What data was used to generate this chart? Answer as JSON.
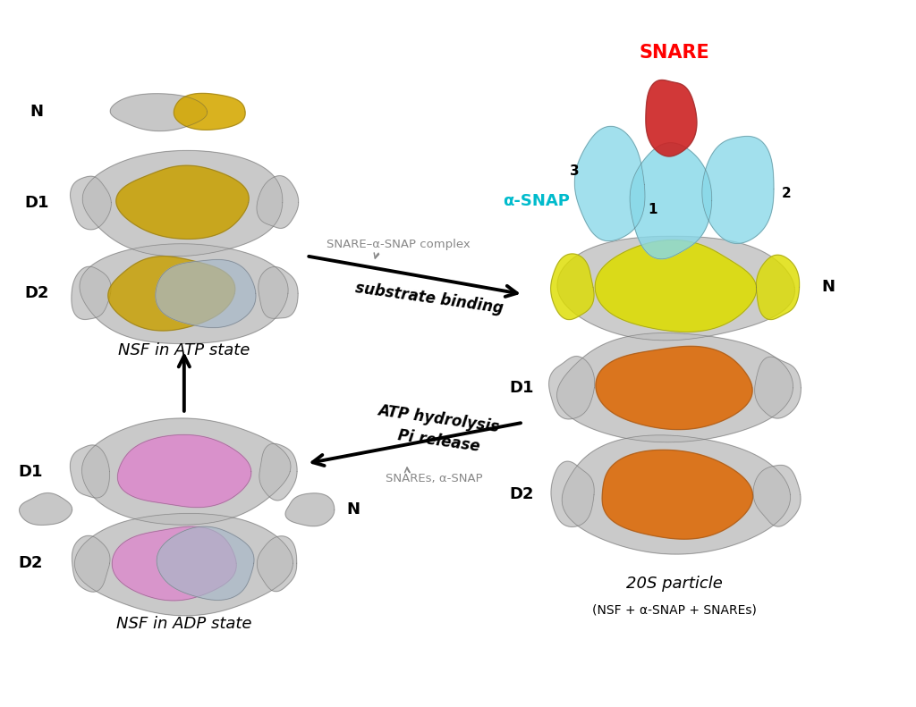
{
  "background_color": "#ffffff",
  "fig_width": 10.24,
  "fig_height": 7.91,
  "nsf_atp_label": "NSF in ATP state",
  "nsf_adp_label": "NSF in ADP state",
  "particle_20s_label": "20S particle",
  "particle_20s_sublabel": "(NSF + α-SNAP + SNAREs)",
  "snare_label": "SNARE",
  "snare_color": "#ff0000",
  "alpha_snap_label": "α-SNAP",
  "alpha_snap_color": "#00bbcc",
  "label_N_atp": "N",
  "label_D1_atp": "D1",
  "label_D2_atp": "D2",
  "label_N_adp": "N",
  "label_D1_adp": "D1",
  "label_D2_adp": "D2",
  "label_N_20s": "N",
  "label_D1_20s": "D1",
  "label_D2_20s": "D2",
  "label_1": "1",
  "label_2": "2",
  "label_3": "3",
  "arrow1_label": "substrate binding",
  "arrow1_sublabel": "SNARE–α-SNAP complex",
  "arrow2_label1": "ATP hydrolysis",
  "arrow2_label2": "Pi release",
  "arrow2_sublabel": "SNAREs, α-SNAP",
  "label_fontsize": 13,
  "title_fontsize": 13,
  "color_gray": "#c0c0c0",
  "color_gray_dark": "#a0a0a0",
  "color_gold": "#c8a000",
  "color_gold2": "#d4a800",
  "color_blue_gray": "#a8b8c8",
  "color_pink": "#dd88cc",
  "color_yellow": "#dddd00",
  "color_orange": "#dd6600",
  "color_cyan": "#88d8e8",
  "color_red": "#cc2222",
  "color_green": "#448844",
  "color_edge": "#555555"
}
